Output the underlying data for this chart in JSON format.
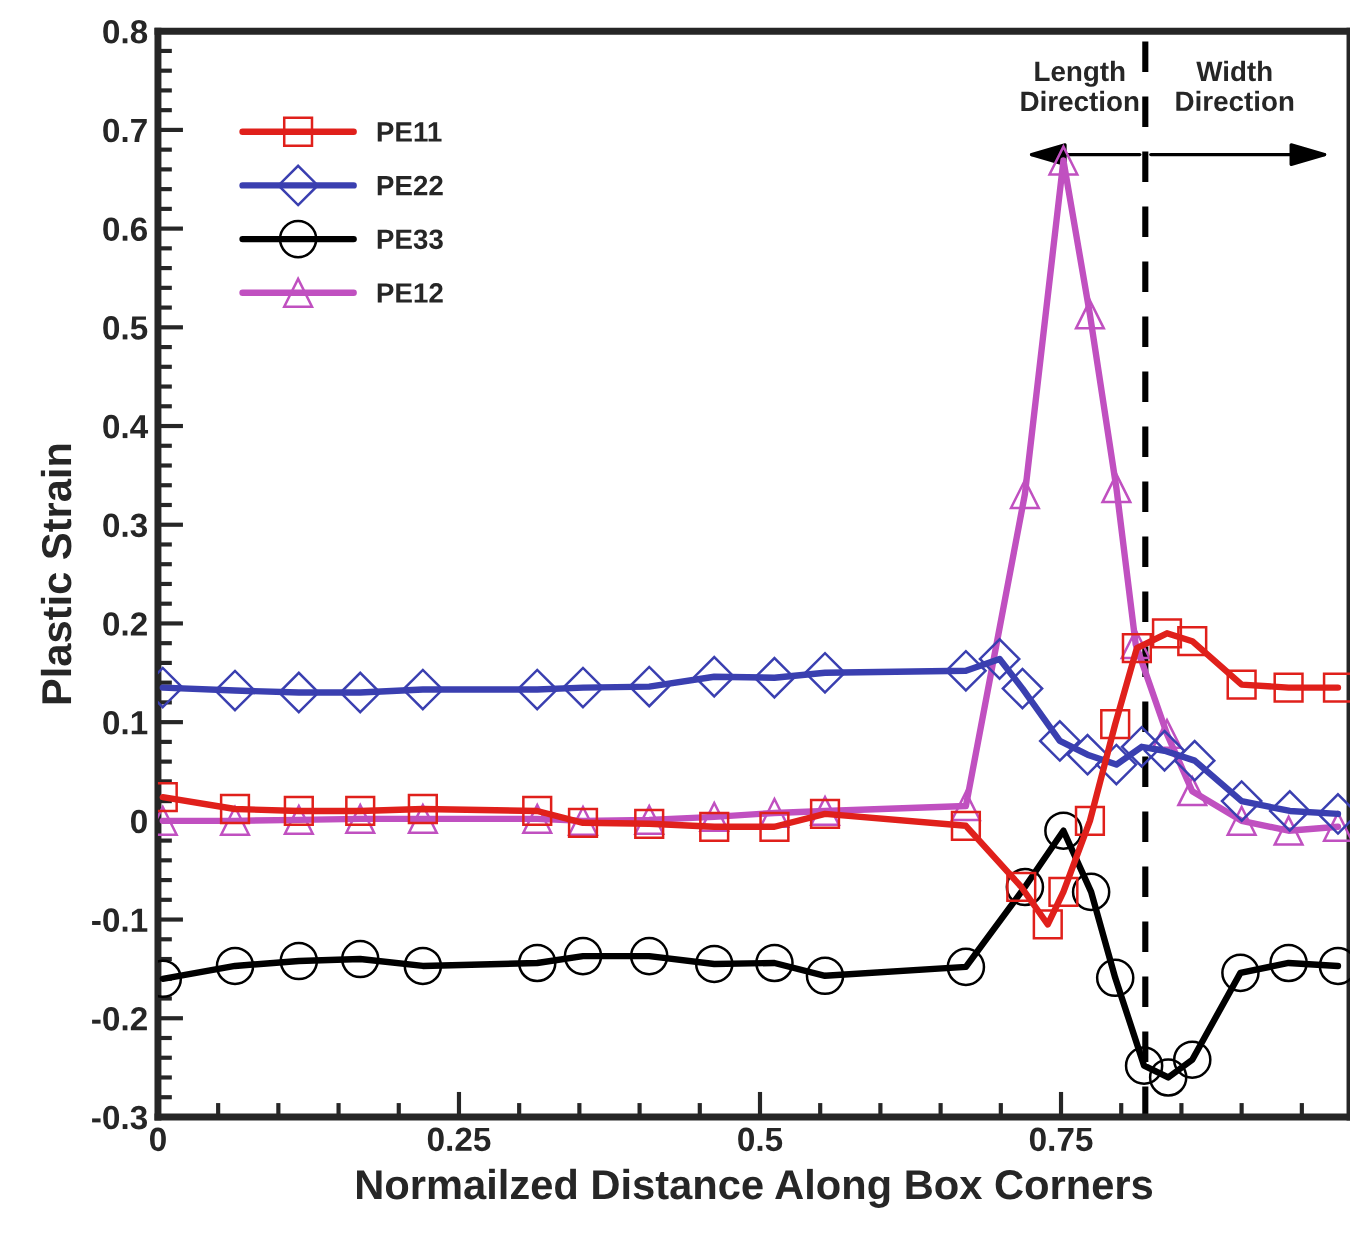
{
  "chart_data": {
    "type": "line",
    "xlabel": "Normailzed Distance Along Box Corners",
    "ylabel": "Plastic Strain",
    "xlim": [
      0,
      0.99
    ],
    "xticks": [
      0,
      0.25,
      0.5,
      0.75
    ],
    "ylim": [
      -0.3,
      0.8
    ],
    "yticks": [
      -0.3,
      -0.2,
      -0.1,
      0,
      0.1,
      0.2,
      0.3,
      0.4,
      0.5,
      0.6,
      0.7,
      0.8
    ],
    "grid": false,
    "legend": "top left",
    "line_style": "solid",
    "ref_lines": [
      {
        "axis": "x",
        "value": 0.82,
        "color": "#000000",
        "line_style": "dashed"
      }
    ],
    "annotations": [
      "Length\nDirection",
      "Width\nDirection"
    ],
    "series": [
      {
        "name": "PE11",
        "color": "#e0201b",
        "marker": "square",
        "x": [
          0.004,
          0.064,
          0.117,
          0.168,
          0.22,
          0.315,
          0.353,
          0.408,
          0.462,
          0.512,
          0.554,
          0.671,
          0.717,
          0.739,
          0.752,
          0.774,
          0.795,
          0.813,
          0.838,
          0.859,
          0.9,
          0.939,
          0.98
        ],
        "values": [
          0.024,
          0.012,
          0.01,
          0.01,
          0.012,
          0.01,
          -0.002,
          -0.003,
          -0.006,
          -0.006,
          0.007,
          -0.005,
          -0.067,
          -0.105,
          -0.072,
          0.0,
          0.098,
          0.175,
          0.19,
          0.182,
          0.138,
          0.135,
          0.135
        ]
      },
      {
        "name": "PE22",
        "color": "#3a3fb0",
        "marker": "diamond",
        "x": [
          0.004,
          0.064,
          0.117,
          0.168,
          0.22,
          0.315,
          0.353,
          0.408,
          0.462,
          0.512,
          0.554,
          0.671,
          0.699,
          0.718,
          0.749,
          0.772,
          0.796,
          0.817,
          0.836,
          0.861,
          0.9,
          0.94,
          0.98
        ],
        "values": [
          0.135,
          0.132,
          0.13,
          0.13,
          0.133,
          0.133,
          0.135,
          0.136,
          0.146,
          0.145,
          0.15,
          0.152,
          0.164,
          0.134,
          0.081,
          0.067,
          0.057,
          0.075,
          0.071,
          0.061,
          0.02,
          0.01,
          0.007
        ]
      },
      {
        "name": "PE33",
        "color": "#000000",
        "marker": "circle",
        "x": [
          0.004,
          0.064,
          0.117,
          0.168,
          0.22,
          0.315,
          0.353,
          0.408,
          0.462,
          0.512,
          0.554,
          0.671,
          0.72,
          0.752,
          0.775,
          0.795,
          0.819,
          0.839,
          0.859,
          0.899,
          0.939,
          0.98
        ],
        "values": [
          -0.16,
          -0.147,
          -0.142,
          -0.14,
          -0.147,
          -0.144,
          -0.137,
          -0.137,
          -0.145,
          -0.144,
          -0.157,
          -0.148,
          -0.067,
          -0.01,
          -0.072,
          -0.159,
          -0.248,
          -0.26,
          -0.242,
          -0.154,
          -0.144,
          -0.147
        ]
      },
      {
        "name": "PE12",
        "color": "#c050c0",
        "marker": "triangle",
        "x": [
          0.004,
          0.064,
          0.117,
          0.168,
          0.22,
          0.315,
          0.353,
          0.408,
          0.462,
          0.512,
          0.554,
          0.671,
          0.72,
          0.752,
          0.774,
          0.796,
          0.812,
          0.838,
          0.859,
          0.9,
          0.939,
          0.98
        ],
        "values": [
          0.0,
          0.0,
          0.001,
          0.002,
          0.002,
          0.002,
          0.0,
          0.001,
          0.004,
          0.008,
          0.01,
          0.015,
          0.331,
          0.669,
          0.513,
          0.337,
          0.179,
          0.088,
          0.03,
          0.0,
          -0.01,
          -0.006
        ]
      }
    ]
  }
}
